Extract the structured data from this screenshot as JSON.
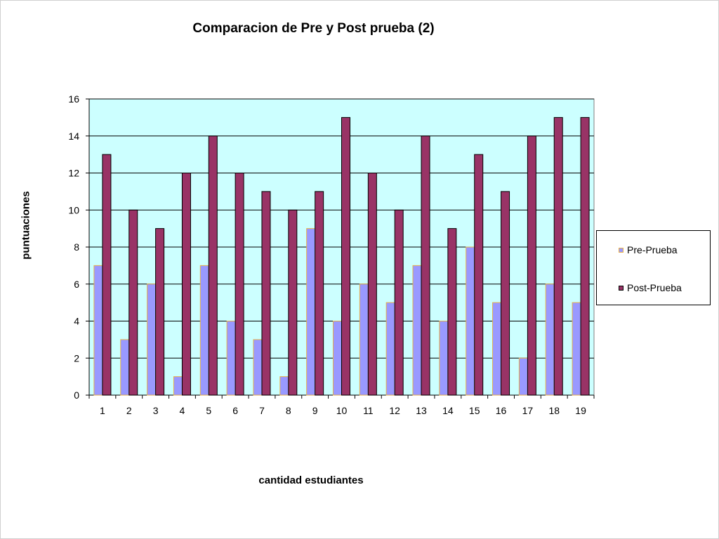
{
  "chart_data": {
    "type": "bar",
    "title": "Comparacion de Pre y Post prueba (2)",
    "xlabel": "cantidad estudiantes",
    "ylabel": "puntuaciones",
    "ylim": [
      0,
      16
    ],
    "yticks": [
      0,
      2,
      4,
      6,
      8,
      10,
      12,
      14,
      16
    ],
    "grid": true,
    "legend_position": "right",
    "categories": [
      "1",
      "2",
      "3",
      "4",
      "5",
      "6",
      "7",
      "8",
      "9",
      "10",
      "11",
      "12",
      "13",
      "14",
      "15",
      "16",
      "17",
      "18",
      "19"
    ],
    "series": [
      {
        "name": "Pre-Prueba",
        "color": "#9999FF",
        "stroke": "#E8B04A",
        "values": [
          7,
          3,
          6,
          1,
          7,
          4,
          3,
          1,
          9,
          4,
          6,
          5,
          7,
          4,
          8,
          5,
          2,
          6,
          5
        ]
      },
      {
        "name": "Post-Prueba",
        "color": "#993366",
        "stroke": "#000000",
        "values": [
          13,
          10,
          9,
          12,
          14,
          12,
          11,
          10,
          11,
          15,
          12,
          10,
          14,
          9,
          13,
          11,
          14,
          15,
          15
        ]
      }
    ],
    "plot_background": "#CCFFFF"
  }
}
